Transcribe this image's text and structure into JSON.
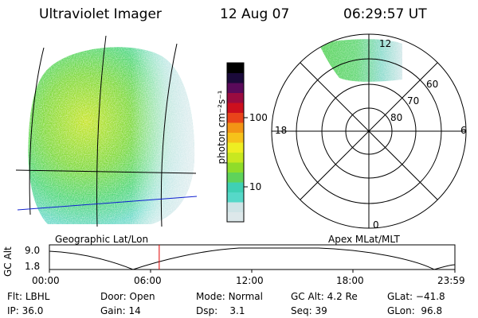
{
  "header": {
    "instrument": "Ultraviolet Imager",
    "date": "12 Aug 07",
    "time": "06:29:57 UT"
  },
  "colorbar": {
    "label": "photon cm⁻²s⁻¹",
    "ticks": [
      "100",
      "10"
    ],
    "colors": [
      "#dde8ea",
      "#cfe4e6",
      "#56d8c8",
      "#3fd0b4",
      "#5fd35a",
      "#8fdc2a",
      "#c8e820",
      "#eeee22",
      "#f6c21a",
      "#f39415",
      "#e9441a",
      "#cc0f1e",
      "#9a0b40",
      "#5a0a5a",
      "#1b0a3a",
      "#000000"
    ]
  },
  "left_panel": {
    "label": "Geographic Lat/Lon"
  },
  "polar": {
    "label": "Apex MLat/MLT",
    "mlt_labels": {
      "top": "12",
      "left": "18",
      "right": "6",
      "bottom": "0"
    },
    "lat_labels": [
      "60",
      "70",
      "80"
    ]
  },
  "timeline": {
    "ylabel": "GC Alt",
    "yticks": [
      "9.0",
      "1.8"
    ],
    "xticks": [
      "00:00",
      "06:00",
      "12:00",
      "18:00",
      "23:59"
    ],
    "current_marker_hour": 6.5
  },
  "info": {
    "row1": [
      {
        "label": "Flt:",
        "value": "LBHL"
      },
      {
        "label": "Door:",
        "value": "Open"
      },
      {
        "label": "Mode:",
        "value": "Normal"
      },
      {
        "label": "GC Alt:",
        "value": "4.2 Re"
      },
      {
        "label": "GLat:",
        "value": "−41.8"
      }
    ],
    "row2": [
      {
        "label": "IP:",
        "value": "36.0"
      },
      {
        "label": "Gain:",
        "value": "14"
      },
      {
        "label": "Dsp:",
        "value": "3.1"
      },
      {
        "label": "Seq:",
        "value": "39"
      },
      {
        "label": "GLon:",
        "value": "96.8"
      }
    ]
  }
}
